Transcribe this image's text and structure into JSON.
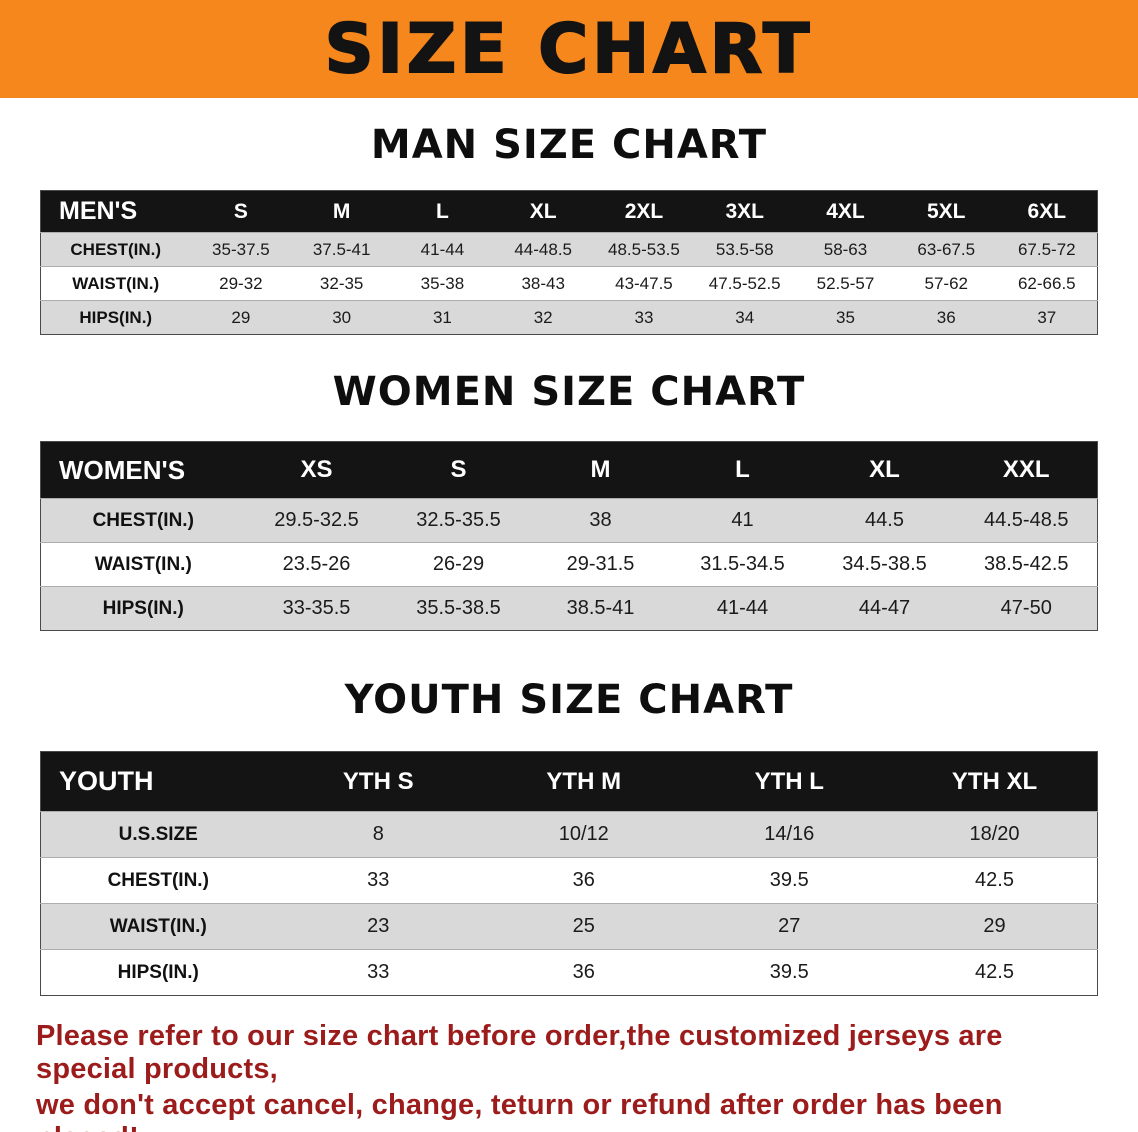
{
  "banner": {
    "title": "SIZE CHART",
    "bg_color": "#f6871d",
    "text_color": "#131313"
  },
  "sections": [
    {
      "id": "men",
      "heading": "MAN SIZE CHART",
      "table": {
        "header": [
          "MEN'S",
          "S",
          "M",
          "L",
          "XL",
          "2XL",
          "3XL",
          "4XL",
          "5XL",
          "6XL"
        ],
        "rows": [
          [
            "CHEST(IN.)",
            "35-37.5",
            "37.5-41",
            "41-44",
            "44-48.5",
            "48.5-53.5",
            "53.5-58",
            "58-63",
            "63-67.5",
            "67.5-72"
          ],
          [
            "WAIST(IN.)",
            "29-32",
            "32-35",
            "35-38",
            "38-43",
            "43-47.5",
            "47.5-52.5",
            "52.5-57",
            "57-62",
            "62-66.5"
          ],
          [
            "HIPS(IN.)",
            "29",
            "30",
            "31",
            "32",
            "33",
            "34",
            "35",
            "36",
            "37"
          ]
        ]
      }
    },
    {
      "id": "women",
      "heading": "WOMEN SIZE CHART",
      "table": {
        "header": [
          "WOMEN'S",
          "XS",
          "S",
          "M",
          "L",
          "XL",
          "XXL"
        ],
        "rows": [
          [
            "CHEST(IN.)",
            "29.5-32.5",
            "32.5-35.5",
            "38",
            "41",
            "44.5",
            "44.5-48.5"
          ],
          [
            "WAIST(IN.)",
            "23.5-26",
            "26-29",
            "29-31.5",
            "31.5-34.5",
            "34.5-38.5",
            "38.5-42.5"
          ],
          [
            "HIPS(IN.)",
            "33-35.5",
            "35.5-38.5",
            "38.5-41",
            "41-44",
            "44-47",
            "47-50"
          ]
        ]
      }
    },
    {
      "id": "youth",
      "heading": "YOUTH SIZE CHART",
      "table": {
        "header": [
          "YOUTH",
          "YTH S",
          "YTH M",
          "YTH L",
          "YTH XL"
        ],
        "rows": [
          [
            "U.S.SIZE",
            "8",
            "10/12",
            "14/16",
            "18/20"
          ],
          [
            "CHEST(IN.)",
            "33",
            "36",
            "39.5",
            "42.5"
          ],
          [
            "WAIST(IN.)",
            "23",
            "25",
            "27",
            "29"
          ],
          [
            "HIPS(IN.)",
            "33",
            "36",
            "39.5",
            "42.5"
          ]
        ]
      }
    }
  ],
  "footer": {
    "lines": [
      "Please refer to our size chart before order,the customized jerseys are special products,",
      "we don't accept cancel, change, teturn or refund after order has been placed!"
    ],
    "color": "#9c1c1c"
  }
}
